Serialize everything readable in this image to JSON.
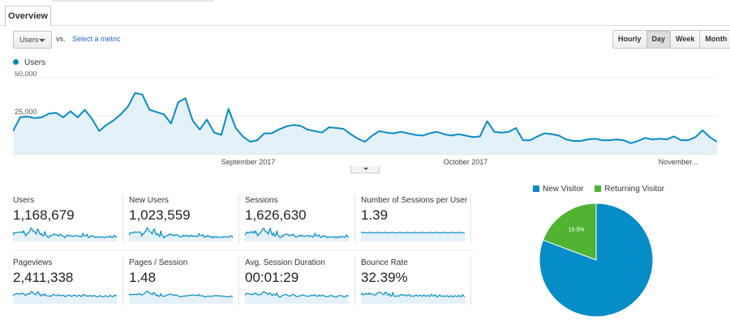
{
  "header": {
    "tab_label": "Overview"
  },
  "controls": {
    "metric_label": "Users",
    "vs_label": "vs.",
    "select_metric": "Select a metric",
    "periods": [
      "Hourly",
      "Day",
      "Week",
      "Month"
    ],
    "active_period": "Day"
  },
  "chart_data": [
    {
      "type": "area",
      "legend": [
        "Users"
      ],
      "yticks": [
        "50,000",
        "25,000"
      ],
      "ylim": [
        0,
        50000
      ],
      "x_labels": [
        "September 2017",
        "October 2017",
        "November..."
      ],
      "color": "#058dc7",
      "fill": "#e5f1f9",
      "grid": true,
      "series": [
        {
          "name": "Users",
          "values": [
            15000,
            24000,
            24500,
            23500,
            24000,
            26500,
            27000,
            24000,
            28000,
            24000,
            29000,
            23000,
            15000,
            19000,
            22000,
            26000,
            31000,
            40000,
            39000,
            29000,
            27500,
            26000,
            20000,
            34000,
            36500,
            22000,
            16000,
            22500,
            14000,
            12500,
            29500,
            17000,
            11500,
            8000,
            9000,
            13500,
            13500,
            16000,
            18000,
            19000,
            18500,
            16000,
            15000,
            14000,
            17500,
            17000,
            16500,
            13000,
            10000,
            8000,
            12000,
            15000,
            14000,
            13500,
            14500,
            13500,
            12500,
            12000,
            13500,
            14500,
            13000,
            12000,
            13000,
            12000,
            11000,
            11500,
            21500,
            14500,
            14000,
            14500,
            17000,
            9000,
            9000,
            11500,
            13500,
            13000,
            12000,
            9500,
            8500,
            8500,
            9500,
            10000,
            9000,
            9000,
            9500,
            9000,
            7000,
            8500,
            10500,
            9500,
            10000,
            9500,
            11500,
            9000,
            9000,
            11000,
            15500,
            11000,
            8000
          ]
        }
      ]
    },
    {
      "type": "pie",
      "legend": [
        "New Visitor",
        "Returning Visitor"
      ],
      "series": [
        {
          "name": "New Visitor",
          "label": "80.7%",
          "value": 80.7,
          "color": "#058dc7"
        },
        {
          "name": "Returning Visitor",
          "label": "19.3%",
          "value": 19.3,
          "color": "#50b432"
        }
      ]
    }
  ],
  "tiles": [
    {
      "label": "Users",
      "value": "1,168,679"
    },
    {
      "label": "New Users",
      "value": "1,023,559"
    },
    {
      "label": "Sessions",
      "value": "1,626,630"
    },
    {
      "label": "Number of Sessions per User",
      "value": "1.39"
    },
    {
      "label": "Pageviews",
      "value": "2,411,338"
    },
    {
      "label": "Pages / Session",
      "value": "1.48"
    },
    {
      "label": "Avg. Session Duration",
      "value": "00:01:29"
    },
    {
      "label": "Bounce Rate",
      "value": "32.39%"
    }
  ]
}
